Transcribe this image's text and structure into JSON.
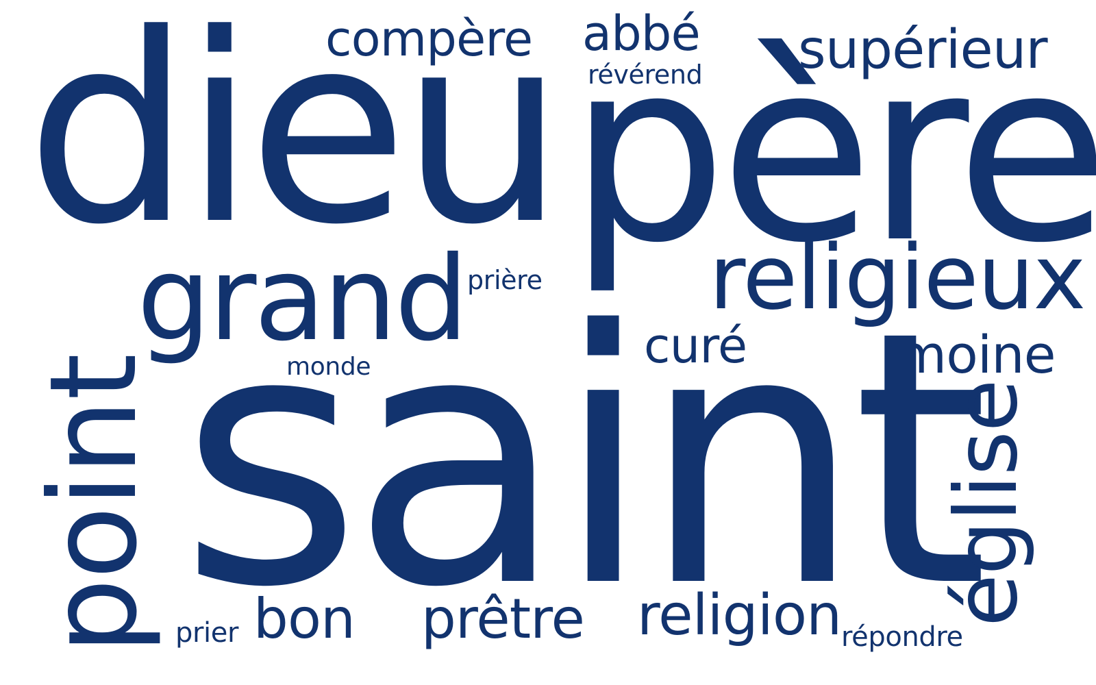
{
  "color": "#12336e",
  "words": {
    "dieu": "dieu",
    "pere": "père",
    "saint": "saint",
    "grand": "grand",
    "religieux": "religieux",
    "point": "point",
    "eglise": "église",
    "compere": "compère",
    "abbe": "abbé",
    "reverend": "révérend",
    "superieur": "supérieur",
    "priere": "prière",
    "cure": "curé",
    "moine": "moine",
    "monde": "monde",
    "prier": "prier",
    "bon": "bon",
    "pretre": "prêtre",
    "religion": "religion",
    "repondre": "répondre"
  }
}
